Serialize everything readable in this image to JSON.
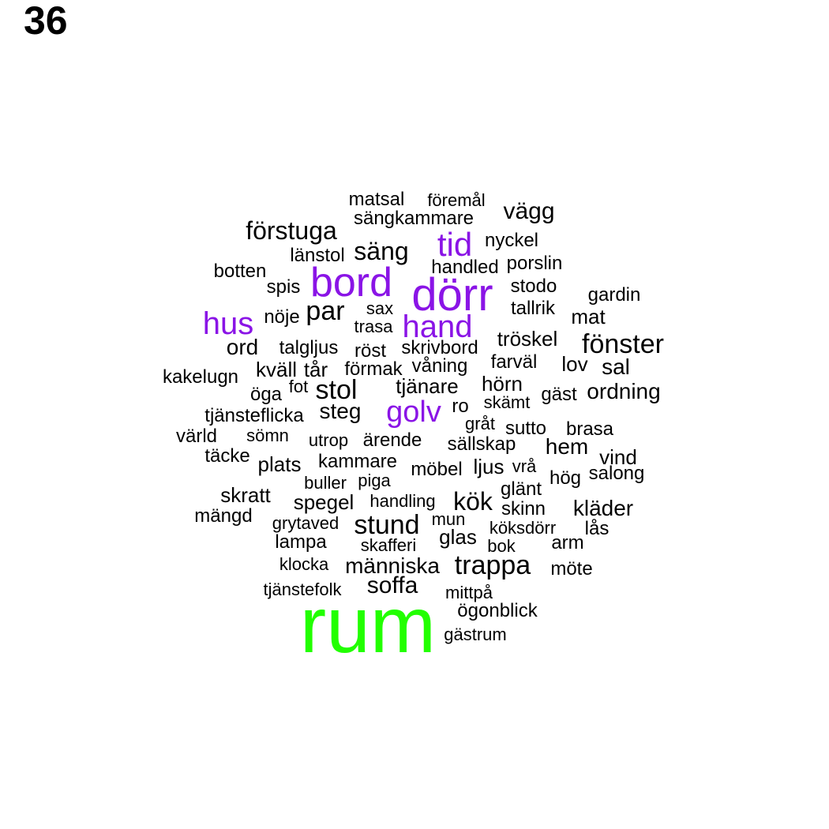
{
  "panel_number": "36",
  "colors": {
    "tier1": "#22ff00",
    "tier2": "#8a14e6",
    "tier3": "#000000"
  },
  "words": [
    {
      "text": "rum",
      "tier": 1
    },
    {
      "text": "dörr",
      "tier": 2
    },
    {
      "text": "bord",
      "tier": 2
    },
    {
      "text": "hand",
      "tier": 2
    },
    {
      "text": "hus",
      "tier": 2
    },
    {
      "text": "golv",
      "tier": 2
    },
    {
      "text": "tid",
      "tier": 2
    },
    {
      "text": "matsal",
      "tier": 3
    },
    {
      "text": "föremål",
      "tier": 3
    },
    {
      "text": "vägg",
      "tier": 3
    },
    {
      "text": "sängkammare",
      "tier": 3
    },
    {
      "text": "förstuga",
      "tier": 3
    },
    {
      "text": "nyckel",
      "tier": 3
    },
    {
      "text": "länstol",
      "tier": 3
    },
    {
      "text": "säng",
      "tier": 3
    },
    {
      "text": "handled",
      "tier": 3
    },
    {
      "text": "porslin",
      "tier": 3
    },
    {
      "text": "botten",
      "tier": 3
    },
    {
      "text": "spis",
      "tier": 3
    },
    {
      "text": "stodo",
      "tier": 3
    },
    {
      "text": "gardin",
      "tier": 3
    },
    {
      "text": "par",
      "tier": 3
    },
    {
      "text": "sax",
      "tier": 3
    },
    {
      "text": "tallrik",
      "tier": 3
    },
    {
      "text": "nöje",
      "tier": 3
    },
    {
      "text": "mat",
      "tier": 3
    },
    {
      "text": "trasa",
      "tier": 3
    },
    {
      "text": "tröskel",
      "tier": 3
    },
    {
      "text": "fönster",
      "tier": 3
    },
    {
      "text": "ord",
      "tier": 3
    },
    {
      "text": "talgljus",
      "tier": 3
    },
    {
      "text": "röst",
      "tier": 3
    },
    {
      "text": "skrivbord",
      "tier": 3
    },
    {
      "text": "farväl",
      "tier": 3
    },
    {
      "text": "lov",
      "tier": 3
    },
    {
      "text": "sal",
      "tier": 3
    },
    {
      "text": "kväll",
      "tier": 3
    },
    {
      "text": "tår",
      "tier": 3
    },
    {
      "text": "förmak",
      "tier": 3
    },
    {
      "text": "våning",
      "tier": 3
    },
    {
      "text": "kakelugn",
      "tier": 3
    },
    {
      "text": "fot",
      "tier": 3
    },
    {
      "text": "stol",
      "tier": 3
    },
    {
      "text": "tjänare",
      "tier": 3
    },
    {
      "text": "hörn",
      "tier": 3
    },
    {
      "text": "gäst",
      "tier": 3
    },
    {
      "text": "ordning",
      "tier": 3
    },
    {
      "text": "öga",
      "tier": 3
    },
    {
      "text": "skämt",
      "tier": 3
    },
    {
      "text": "ro",
      "tier": 3
    },
    {
      "text": "tjänsteflicka",
      "tier": 3
    },
    {
      "text": "steg",
      "tier": 3
    },
    {
      "text": "gråt",
      "tier": 3
    },
    {
      "text": "sutto",
      "tier": 3
    },
    {
      "text": "brasa",
      "tier": 3
    },
    {
      "text": "värld",
      "tier": 3
    },
    {
      "text": "sömn",
      "tier": 3
    },
    {
      "text": "utrop",
      "tier": 3
    },
    {
      "text": "ärende",
      "tier": 3
    },
    {
      "text": "sällskap",
      "tier": 3
    },
    {
      "text": "hem",
      "tier": 3
    },
    {
      "text": "vind",
      "tier": 3
    },
    {
      "text": "täcke",
      "tier": 3
    },
    {
      "text": "plats",
      "tier": 3
    },
    {
      "text": "kammare",
      "tier": 3
    },
    {
      "text": "möbel",
      "tier": 3
    },
    {
      "text": "ljus",
      "tier": 3
    },
    {
      "text": "vrå",
      "tier": 3
    },
    {
      "text": "salong",
      "tier": 3
    },
    {
      "text": "buller",
      "tier": 3
    },
    {
      "text": "piga",
      "tier": 3
    },
    {
      "text": "hög",
      "tier": 3
    },
    {
      "text": "glänt",
      "tier": 3
    },
    {
      "text": "skratt",
      "tier": 3
    },
    {
      "text": "spegel",
      "tier": 3
    },
    {
      "text": "handling",
      "tier": 3
    },
    {
      "text": "kök",
      "tier": 3
    },
    {
      "text": "skinn",
      "tier": 3
    },
    {
      "text": "kläder",
      "tier": 3
    },
    {
      "text": "mängd",
      "tier": 3
    },
    {
      "text": "grytaved",
      "tier": 3
    },
    {
      "text": "stund",
      "tier": 3
    },
    {
      "text": "mun",
      "tier": 3
    },
    {
      "text": "köksdörr",
      "tier": 3
    },
    {
      "text": "lås",
      "tier": 3
    },
    {
      "text": "lampa",
      "tier": 3
    },
    {
      "text": "skafferi",
      "tier": 3
    },
    {
      "text": "glas",
      "tier": 3
    },
    {
      "text": "bok",
      "tier": 3
    },
    {
      "text": "arm",
      "tier": 3
    },
    {
      "text": "klocka",
      "tier": 3
    },
    {
      "text": "människa",
      "tier": 3
    },
    {
      "text": "trappa",
      "tier": 3
    },
    {
      "text": "möte",
      "tier": 3
    },
    {
      "text": "tjänstefolk",
      "tier": 3
    },
    {
      "text": "soffa",
      "tier": 3
    },
    {
      "text": "mittpå",
      "tier": 3
    },
    {
      "text": "ögonblick",
      "tier": 3
    },
    {
      "text": "gästrum",
      "tier": 3
    }
  ]
}
